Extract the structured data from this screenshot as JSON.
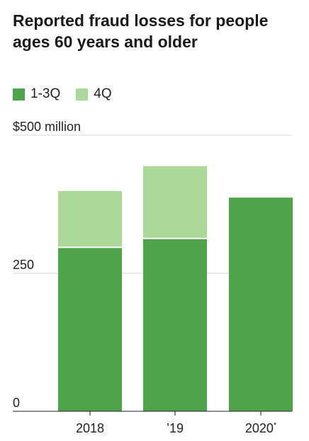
{
  "title": "Reported fraud losses for people ages 60 years and older",
  "legend": [
    {
      "label": "1-3Q",
      "color": "#4fa44b"
    },
    {
      "label": "4Q",
      "color": "#acd99a"
    }
  ],
  "chart_data": {
    "type": "bar",
    "stacked": true,
    "categories": [
      "2018",
      "’19",
      "2020*"
    ],
    "series": [
      {
        "name": "1-3Q",
        "color": "#4fa44b",
        "values": [
          297,
          313,
          387
        ]
      },
      {
        "name": "4Q",
        "color": "#acd99a",
        "values": [
          102,
          131,
          null
        ]
      }
    ],
    "ylim": [
      0,
      500
    ],
    "yticks": [
      {
        "value": 0,
        "label": "0"
      },
      {
        "value": 250,
        "label": "250"
      },
      {
        "value": 500,
        "label": "$500 million"
      }
    ],
    "grid": true
  }
}
